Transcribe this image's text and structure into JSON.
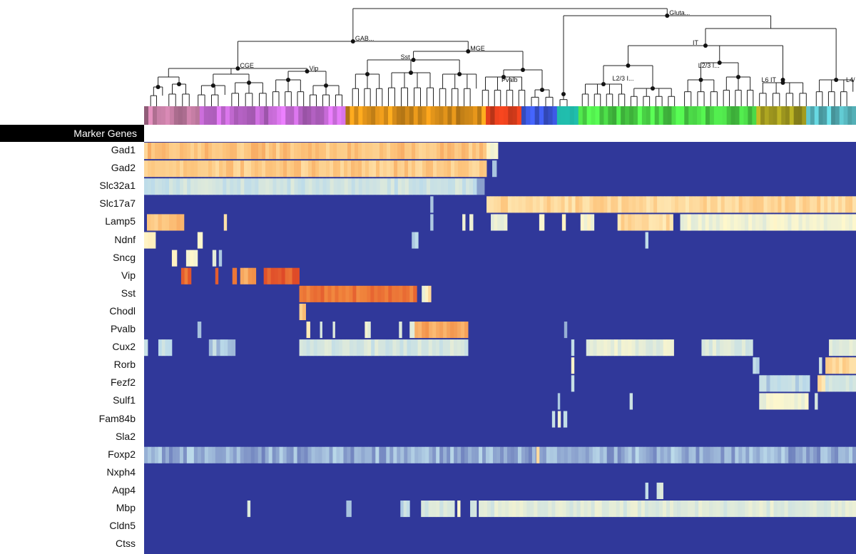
{
  "chart_data": {
    "type": "heatmap",
    "header_label": "Marker Genes",
    "genes": [
      "Gad1",
      "Gad2",
      "Slc32a1",
      "Slc17a7",
      "Lamp5",
      "Ndnf",
      "Sncg",
      "Vip",
      "Sst",
      "Chodl",
      "Pvalb",
      "Cux2",
      "Rorb",
      "Fezf2",
      "Sulf1",
      "Fam84b",
      "Sla2",
      "Foxp2",
      "Nxph4",
      "Aqp4",
      "Mbp",
      "Cldn5",
      "Ctss"
    ],
    "taxonomy_labels": [
      "Gluta...",
      "GAB...",
      "MGE",
      "CGE",
      "Sst",
      "Vip",
      "Pvalb",
      "IT",
      "L2/3 I...",
      "L2/3 I...",
      "L6 IT",
      "L4/"
    ],
    "color_scale": {
      "low": "#30389a",
      "mid": "#fff8cc",
      "high": "#d7301f"
    },
    "cluster_groups": [
      {
        "taxon": "CGE",
        "color": "#c07aa0"
      },
      {
        "taxon": "CGE",
        "color": "#c86cd8"
      },
      {
        "taxon": "MGE",
        "color": "#e0931a"
      },
      {
        "taxon": "Pvalb",
        "color": "#cf3a1a"
      },
      {
        "taxon": "Glutamatergic",
        "color": "#3a55d8"
      },
      {
        "taxon": "IT",
        "color": "#22c9b8"
      },
      {
        "taxon": "IT",
        "color": "#4ee04a"
      },
      {
        "taxon": "L6 IT",
        "color": "#a8a020"
      },
      {
        "taxon": "L4/",
        "color": "#5cc0c8"
      }
    ],
    "expression_blocks": [
      {
        "gene": "Gad1",
        "from": 0.0,
        "to": 0.481,
        "level": 0.62
      },
      {
        "gene": "Gad1",
        "from": 0.481,
        "to": 0.497,
        "level": 0.45
      },
      {
        "gene": "Gad2",
        "from": 0.0,
        "to": 0.481,
        "level": 0.6
      },
      {
        "gene": "Gad2",
        "from": 0.489,
        "to": 0.495,
        "level": 0.25
      },
      {
        "gene": "Slc32a1",
        "from": 0.0,
        "to": 0.462,
        "level": 0.28
      },
      {
        "gene": "Slc32a1",
        "from": 0.462,
        "to": 0.478,
        "level": 0.18
      },
      {
        "gene": "Slc17a7",
        "from": 0.481,
        "to": 1.0,
        "level": 0.56
      },
      {
        "gene": "Slc17a7",
        "from": 0.402,
        "to": 0.406,
        "level": 0.2
      },
      {
        "gene": "Lamp5",
        "from": 0.004,
        "to": 0.056,
        "level": 0.62
      },
      {
        "gene": "Lamp5",
        "from": 0.112,
        "to": 0.116,
        "level": 0.5
      },
      {
        "gene": "Lamp5",
        "from": 0.402,
        "to": 0.406,
        "level": 0.25
      },
      {
        "gene": "Lamp5",
        "from": 0.447,
        "to": 0.451,
        "level": 0.4
      },
      {
        "gene": "Lamp5",
        "from": 0.457,
        "to": 0.462,
        "level": 0.4
      },
      {
        "gene": "Lamp5",
        "from": 0.487,
        "to": 0.51,
        "level": 0.38
      },
      {
        "gene": "Lamp5",
        "from": 0.555,
        "to": 0.562,
        "level": 0.45
      },
      {
        "gene": "Lamp5",
        "from": 0.587,
        "to": 0.592,
        "level": 0.45
      },
      {
        "gene": "Lamp5",
        "from": 0.613,
        "to": 0.632,
        "level": 0.42
      },
      {
        "gene": "Lamp5",
        "from": 0.665,
        "to": 0.743,
        "level": 0.55
      },
      {
        "gene": "Lamp5",
        "from": 0.753,
        "to": 1.0,
        "level": 0.4
      },
      {
        "gene": "Ndnf",
        "from": 0.0,
        "to": 0.016,
        "level": 0.5
      },
      {
        "gene": "Ndnf",
        "from": 0.075,
        "to": 0.082,
        "level": 0.48
      },
      {
        "gene": "Ndnf",
        "from": 0.376,
        "to": 0.385,
        "level": 0.25
      },
      {
        "gene": "Ndnf",
        "from": 0.704,
        "to": 0.708,
        "level": 0.2
      },
      {
        "gene": "Sncg",
        "from": 0.039,
        "to": 0.046,
        "level": 0.5
      },
      {
        "gene": "Sncg",
        "from": 0.059,
        "to": 0.075,
        "level": 0.46
      },
      {
        "gene": "Sncg",
        "from": 0.096,
        "to": 0.101,
        "level": 0.35
      },
      {
        "gene": "Sncg",
        "from": 0.105,
        "to": 0.109,
        "level": 0.25
      },
      {
        "gene": "Vip",
        "from": 0.052,
        "to": 0.066,
        "level": 0.85
      },
      {
        "gene": "Vip",
        "from": 0.1,
        "to": 0.104,
        "level": 0.85
      },
      {
        "gene": "Vip",
        "from": 0.124,
        "to": 0.13,
        "level": 0.78
      },
      {
        "gene": "Vip",
        "from": 0.135,
        "to": 0.157,
        "level": 0.7
      },
      {
        "gene": "Vip",
        "from": 0.168,
        "to": 0.218,
        "level": 0.88
      },
      {
        "gene": "Sst",
        "from": 0.218,
        "to": 0.383,
        "level": 0.82
      },
      {
        "gene": "Sst",
        "from": 0.39,
        "to": 0.395,
        "level": 0.35
      },
      {
        "gene": "Sst",
        "from": 0.395,
        "to": 0.403,
        "level": 0.5
      },
      {
        "gene": "Chodl",
        "from": 0.218,
        "to": 0.227,
        "level": 0.6
      },
      {
        "gene": "Pvalb",
        "from": 0.075,
        "to": 0.08,
        "level": 0.2
      },
      {
        "gene": "Pvalb",
        "from": 0.228,
        "to": 0.233,
        "level": 0.55
      },
      {
        "gene": "Pvalb",
        "from": 0.247,
        "to": 0.25,
        "level": 0.3
      },
      {
        "gene": "Pvalb",
        "from": 0.265,
        "to": 0.268,
        "level": 0.3
      },
      {
        "gene": "Pvalb",
        "from": 0.31,
        "to": 0.318,
        "level": 0.4
      },
      {
        "gene": "Pvalb",
        "from": 0.358,
        "to": 0.362,
        "level": 0.3
      },
      {
        "gene": "Pvalb",
        "from": 0.373,
        "to": 0.38,
        "level": 0.3
      },
      {
        "gene": "Pvalb",
        "from": 0.38,
        "to": 0.455,
        "level": 0.68
      },
      {
        "gene": "Pvalb",
        "from": 0.59,
        "to": 0.594,
        "level": 0.2
      },
      {
        "gene": "Cux2",
        "from": 0.0,
        "to": 0.005,
        "level": 0.25
      },
      {
        "gene": "Cux2",
        "from": 0.02,
        "to": 0.039,
        "level": 0.25
      },
      {
        "gene": "Cux2",
        "from": 0.091,
        "to": 0.128,
        "level": 0.22
      },
      {
        "gene": "Cux2",
        "from": 0.218,
        "to": 0.455,
        "level": 0.3
      },
      {
        "gene": "Cux2",
        "from": 0.6,
        "to": 0.604,
        "level": 0.25
      },
      {
        "gene": "Cux2",
        "from": 0.621,
        "to": 0.744,
        "level": 0.36
      },
      {
        "gene": "Cux2",
        "from": 0.783,
        "to": 0.855,
        "level": 0.33
      },
      {
        "gene": "Cux2",
        "from": 0.962,
        "to": 1.0,
        "level": 0.35
      },
      {
        "gene": "Rorb",
        "from": 0.6,
        "to": 0.604,
        "level": 0.45
      },
      {
        "gene": "Rorb",
        "from": 0.855,
        "to": 0.864,
        "level": 0.24
      },
      {
        "gene": "Rorb",
        "from": 0.948,
        "to": 0.952,
        "level": 0.3
      },
      {
        "gene": "Rorb",
        "from": 0.957,
        "to": 1.0,
        "level": 0.55
      },
      {
        "gene": "Fezf2",
        "from": 0.6,
        "to": 0.604,
        "level": 0.25
      },
      {
        "gene": "Fezf2",
        "from": 0.864,
        "to": 0.935,
        "level": 0.24
      },
      {
        "gene": "Fezf2",
        "from": 0.946,
        "to": 0.957,
        "level": 0.52
      },
      {
        "gene": "Fezf2",
        "from": 0.957,
        "to": 1.0,
        "level": 0.3
      },
      {
        "gene": "Sulf1",
        "from": 0.581,
        "to": 0.584,
        "level": 0.25
      },
      {
        "gene": "Sulf1",
        "from": 0.682,
        "to": 0.686,
        "level": 0.25
      },
      {
        "gene": "Sulf1",
        "from": 0.864,
        "to": 0.933,
        "level": 0.4
      },
      {
        "gene": "Sulf1",
        "from": 0.942,
        "to": 0.946,
        "level": 0.35
      },
      {
        "gene": "Fam84b",
        "from": 0.573,
        "to": 0.577,
        "level": 0.25
      },
      {
        "gene": "Fam84b",
        "from": 0.581,
        "to": 0.585,
        "level": 0.4
      },
      {
        "gene": "Fam84b",
        "from": 0.589,
        "to": 0.594,
        "level": 0.25
      },
      {
        "gene": "Foxp2",
        "from": 0.0,
        "to": 1.0,
        "level": 0.16
      },
      {
        "gene": "Foxp2",
        "from": 0.551,
        "to": 0.555,
        "level": 0.6
      },
      {
        "gene": "Aqp4",
        "from": 0.704,
        "to": 0.708,
        "level": 0.3
      },
      {
        "gene": "Aqp4",
        "from": 0.72,
        "to": 0.729,
        "level": 0.3
      },
      {
        "gene": "Mbp",
        "from": 0.145,
        "to": 0.149,
        "level": 0.3
      },
      {
        "gene": "Mbp",
        "from": 0.284,
        "to": 0.291,
        "level": 0.2
      },
      {
        "gene": "Mbp",
        "from": 0.36,
        "to": 0.373,
        "level": 0.25
      },
      {
        "gene": "Mbp",
        "from": 0.389,
        "to": 0.436,
        "level": 0.32
      },
      {
        "gene": "Mbp",
        "from": 0.44,
        "to": 0.444,
        "level": 0.42
      },
      {
        "gene": "Mbp",
        "from": 0.458,
        "to": 0.467,
        "level": 0.25
      },
      {
        "gene": "Mbp",
        "from": 0.47,
        "to": 0.477,
        "level": 0.3
      },
      {
        "gene": "Mbp",
        "from": 0.477,
        "to": 1.0,
        "level": 0.34
      }
    ]
  }
}
